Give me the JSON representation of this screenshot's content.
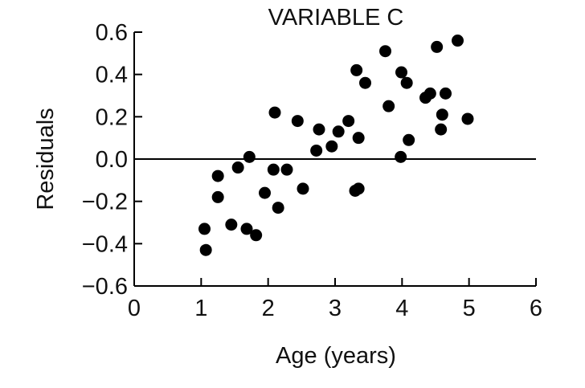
{
  "chart_data": {
    "type": "scatter",
    "title": "VARIABLE C",
    "xlabel": "Age (years)",
    "ylabel": "Residuals",
    "xlim": [
      0,
      6
    ],
    "ylim": [
      -0.6,
      0.6
    ],
    "xticks": [
      0,
      1,
      2,
      3,
      4,
      5,
      6
    ],
    "xtick_labels": [
      "0",
      "1",
      "2",
      "3",
      "4",
      "5",
      "6"
    ],
    "yticks": [
      0.6,
      0.4,
      0.2,
      0.0,
      -0.2,
      -0.4,
      -0.6
    ],
    "ytick_labels": [
      "0.6",
      "0.4",
      "0.2",
      "0.0",
      "−0.2",
      "−0.4",
      "−0.6"
    ],
    "reference_line_y": 0.0,
    "grid": false,
    "point_color": "#000000",
    "points": [
      {
        "x": 1.05,
        "y": -0.33
      },
      {
        "x": 1.07,
        "y": -0.43
      },
      {
        "x": 1.25,
        "y": -0.08
      },
      {
        "x": 1.25,
        "y": -0.18
      },
      {
        "x": 1.45,
        "y": -0.31
      },
      {
        "x": 1.55,
        "y": -0.04
      },
      {
        "x": 1.68,
        "y": -0.33
      },
      {
        "x": 1.72,
        "y": 0.01
      },
      {
        "x": 1.82,
        "y": -0.36
      },
      {
        "x": 1.95,
        "y": -0.16
      },
      {
        "x": 2.08,
        "y": -0.05
      },
      {
        "x": 2.1,
        "y": 0.22
      },
      {
        "x": 2.15,
        "y": -0.23
      },
      {
        "x": 2.28,
        "y": -0.05
      },
      {
        "x": 2.44,
        "y": 0.18
      },
      {
        "x": 2.52,
        "y": -0.14
      },
      {
        "x": 2.72,
        "y": 0.04
      },
      {
        "x": 2.76,
        "y": 0.14
      },
      {
        "x": 2.95,
        "y": 0.06
      },
      {
        "x": 3.05,
        "y": 0.13
      },
      {
        "x": 3.2,
        "y": 0.18
      },
      {
        "x": 3.3,
        "y": -0.15
      },
      {
        "x": 3.32,
        "y": 0.42
      },
      {
        "x": 3.35,
        "y": -0.14
      },
      {
        "x": 3.35,
        "y": 0.1
      },
      {
        "x": 3.45,
        "y": 0.36
      },
      {
        "x": 3.75,
        "y": 0.51
      },
      {
        "x": 3.8,
        "y": 0.25
      },
      {
        "x": 3.98,
        "y": 0.01
      },
      {
        "x": 3.99,
        "y": 0.41
      },
      {
        "x": 4.07,
        "y": 0.36
      },
      {
        "x": 4.1,
        "y": 0.09
      },
      {
        "x": 4.35,
        "y": 0.29
      },
      {
        "x": 4.42,
        "y": 0.31
      },
      {
        "x": 4.52,
        "y": 0.53
      },
      {
        "x": 4.58,
        "y": 0.14
      },
      {
        "x": 4.6,
        "y": 0.21
      },
      {
        "x": 4.65,
        "y": 0.31
      },
      {
        "x": 4.83,
        "y": 0.56
      },
      {
        "x": 4.98,
        "y": 0.19
      }
    ]
  }
}
